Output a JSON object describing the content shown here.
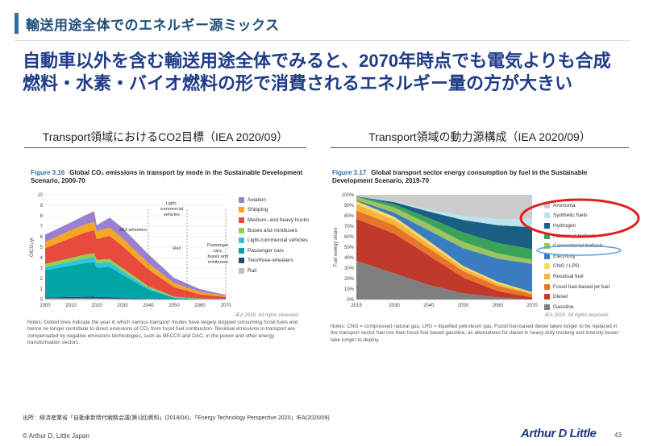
{
  "slide": {
    "section_title": "輸送用途全体でのエネルギー源ミックス",
    "headline": "自動車以外を含む輸送用途全体でみると、2070年時点でも電気よりも合成燃料・水素・バイオ燃料の形で消費されるエネルギー量の方が大きい",
    "footer_source": "出所：経済産業省「自動車新時代戦略会議(第1回)資料」(2018/04)、「Energy Technology Perspective 2020」IEA(2020/09)",
    "copyright": "© Arthur D. Little Japan",
    "logo": "Arthur D Little",
    "page_number": "43"
  },
  "left": {
    "heading": "Transport領域におけるCO2目標（IEA 2020/09）",
    "fig_num": "Figure 3.16",
    "fig_caption": "Global CO₂ emissions in transport by mode in the Sustainable Development Scenario, 2000-70",
    "source": "IEA 2020. All rights reserved.",
    "notes": "Notes: Dotted lines indicate the year in which various transport modes have largely stopped consuming fossil fuels and hence no longer contribute to direct emissions of CO₂ from fossil fuel combustion. Residual emissions in transport are compensated by negative emissions technologies, such as BECCS and DAC, in the power and other energy transformation sectors."
  },
  "right": {
    "heading": "Transport領域の動力源構成（IEA 2020/09）",
    "fig_num": "Figure 3.17",
    "fig_caption": "Global transport sector energy consumption by fuel in the Sustainable Development Scenario, 2019-70",
    "source": "IEA 2020. All rights reserved.",
    "notes": "Notes: CNG = compressed natural gas, LPG = liquefied petroleum gas. Fossil fuel-based diesel takes longer to be replaced in the transport sector fuel mix than fossil fuel based gasoline, as alternatives for diesel in heavy duty trucking and intercity buses take longer to deploy."
  },
  "chart_data": [
    {
      "type": "area",
      "stacked": true,
      "title": "Global CO₂ emissions in transport by mode in the Sustainable Development Scenario, 2000-70",
      "xlabel": "",
      "ylabel": "GtCO₂/yr",
      "x": [
        2000,
        2010,
        2015,
        2019,
        2020,
        2025,
        2030,
        2040,
        2050,
        2060,
        2070
      ],
      "xticks": [
        "2000",
        "2010",
        "2020",
        "2030",
        "2040",
        "2050",
        "2060",
        "2070"
      ],
      "yticks": [
        "0",
        "1",
        "2",
        "3",
        "4",
        "5",
        "6",
        "7",
        "8",
        "9",
        "10"
      ],
      "ylim": [
        0,
        10
      ],
      "annotations": [
        "2&3-wheelers",
        "Light-commercial vehicles",
        "Rail",
        "Passenger cars, buses and minibuses"
      ],
      "series": [
        {
          "name": "Rail",
          "color": "#bfbfbf",
          "values": [
            0.1,
            0.1,
            0.1,
            0.1,
            0.09,
            0.08,
            0.06,
            0.03,
            0.01,
            0.01,
            0.01
          ]
        },
        {
          "name": "Two/three-wheelers",
          "color": "#1f4e79",
          "values": [
            0.1,
            0.14,
            0.16,
            0.17,
            0.15,
            0.14,
            0.1,
            0.02,
            0.0,
            0.0,
            0.0
          ]
        },
        {
          "name": "Passenger cars",
          "color": "#00a5a5",
          "values": [
            2.6,
            3.0,
            3.2,
            3.3,
            2.8,
            2.9,
            2.2,
            0.9,
            0.15,
            0.05,
            0.02
          ]
        },
        {
          "name": "Light-commercial vehicles",
          "color": "#2ec4e0",
          "values": [
            0.3,
            0.4,
            0.45,
            0.5,
            0.45,
            0.45,
            0.35,
            0.15,
            0.02,
            0.0,
            0.0
          ]
        },
        {
          "name": "Buses and minibuses",
          "color": "#92d050",
          "values": [
            0.3,
            0.33,
            0.35,
            0.35,
            0.3,
            0.3,
            0.28,
            0.18,
            0.08,
            0.03,
            0.01
          ]
        },
        {
          "name": "Medium- and heavy trucks",
          "color": "#e84a3e",
          "values": [
            1.5,
            1.9,
            2.1,
            2.2,
            2.0,
            2.2,
            2.1,
            1.6,
            0.9,
            0.4,
            0.2
          ]
        },
        {
          "name": "Shipping",
          "color": "#f5a623",
          "values": [
            0.6,
            0.75,
            0.78,
            0.8,
            0.75,
            0.8,
            0.75,
            0.6,
            0.4,
            0.25,
            0.1
          ]
        },
        {
          "name": "Aviation",
          "color": "#9b7fd1",
          "values": [
            0.7,
            0.75,
            0.85,
            1.0,
            0.55,
            0.95,
            1.0,
            0.85,
            0.5,
            0.25,
            0.1
          ]
        }
      ]
    },
    {
      "type": "area",
      "stacked": true,
      "percent": true,
      "title": "Global transport sector energy consumption by fuel in the Sustainable Development Scenario, 2019-70",
      "xlabel": "",
      "ylabel": "Fuel energy share",
      "x": [
        2019,
        2030,
        2040,
        2050,
        2060,
        2070
      ],
      "xticks": [
        "2019",
        "2030",
        "2040",
        "2050",
        "2060",
        "2070"
      ],
      "yticks": [
        "0%",
        "10%",
        "20%",
        "30%",
        "40%",
        "50%",
        "60%",
        "70%",
        "80%",
        "90%",
        "100%"
      ],
      "ylim": [
        0,
        100
      ],
      "series": [
        {
          "name": "Gasoline",
          "color": "#7f7f7f",
          "values": [
            37,
            25,
            14,
            6,
            2,
            0
          ]
        },
        {
          "name": "Diesel",
          "color": "#c0392b",
          "values": [
            40,
            38,
            28,
            15,
            6,
            2
          ]
        },
        {
          "name": "Fossil fuel-based jet fuel",
          "color": "#e8742a",
          "values": [
            8,
            8,
            7,
            6,
            5,
            3
          ]
        },
        {
          "name": "Residual fuel",
          "color": "#f5b43c",
          "values": [
            6,
            5,
            4,
            3,
            2,
            1
          ]
        },
        {
          "name": "CNG / LPG",
          "color": "#ffd966",
          "values": [
            3,
            3,
            3,
            2,
            2,
            1
          ]
        },
        {
          "name": "Electricity",
          "color": "#3a7cc2",
          "values": [
            1,
            4,
            10,
            17,
            22,
            27
          ]
        },
        {
          "name": "Conventional biofuels",
          "color": "#9dc45f",
          "values": [
            3,
            5,
            6,
            6,
            5,
            4
          ]
        },
        {
          "name": "Advanced biofuels",
          "color": "#3aa35a",
          "values": [
            0.5,
            3,
            6,
            9,
            10,
            10
          ]
        },
        {
          "name": "Hydrogen",
          "color": "#1b5e83",
          "values": [
            0,
            2,
            6,
            12,
            17,
            21
          ]
        },
        {
          "name": "Synthetic fuels",
          "color": "#bde3ed",
          "values": [
            0,
            0.5,
            2,
            4,
            6,
            8
          ]
        },
        {
          "name": "Ammonia",
          "color": "#cccccc",
          "values": [
            1.5,
            6.5,
            14,
            20,
            23,
            23
          ]
        }
      ],
      "highlights": [
        "Ammonia",
        "Synthetic fuels",
        "Hydrogen",
        "Advanced biofuels",
        "Conventional biofuels",
        "Electricity"
      ]
    }
  ]
}
